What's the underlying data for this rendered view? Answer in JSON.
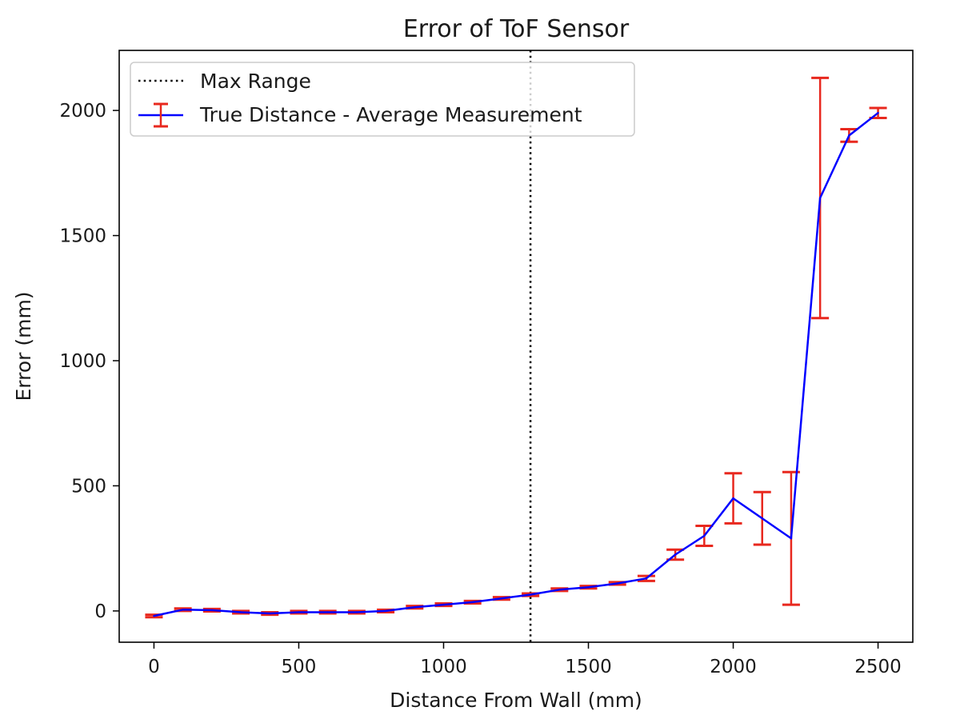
{
  "chart_data": {
    "type": "line",
    "title": "Error of ToF Sensor",
    "xlabel": "Distance From Wall (mm)",
    "ylabel": "Error (mm)",
    "xlim": [
      -120,
      2620
    ],
    "ylim": [
      -125,
      2240
    ],
    "xticks": [
      0,
      500,
      1000,
      1500,
      2000,
      2500
    ],
    "yticks": [
      0,
      500,
      1000,
      1500,
      2000
    ],
    "xtick_labels": [
      "0",
      "500",
      "1000",
      "1500",
      "2000",
      "2500"
    ],
    "ytick_labels": [
      "0",
      "500",
      "1000",
      "1500",
      "2000"
    ],
    "grid": false,
    "legend_position": "top-left",
    "reference_line": {
      "name": "Max Range",
      "x": 1300,
      "style": "dotted",
      "color": "#000000"
    },
    "series": [
      {
        "name": "True Distance - Average Measurement",
        "line_color": "#0000ff",
        "errorbar_color": "#e8281e",
        "x": [
          0,
          100,
          200,
          300,
          400,
          500,
          600,
          700,
          800,
          900,
          1000,
          1100,
          1200,
          1300,
          1400,
          1500,
          1600,
          1700,
          1800,
          1900,
          2000,
          2100,
          2200,
          2300,
          2400,
          2500
        ],
        "y": [
          -20,
          5,
          3,
          -5,
          -10,
          -5,
          -5,
          -5,
          0,
          15,
          25,
          35,
          50,
          65,
          85,
          95,
          110,
          130,
          225,
          300,
          450,
          370,
          290,
          1650,
          1900,
          1990
        ],
        "yerr": [
          5,
          5,
          5,
          5,
          5,
          5,
          5,
          5,
          5,
          5,
          5,
          5,
          5,
          5,
          5,
          5,
          5,
          10,
          20,
          40,
          100,
          105,
          265,
          480,
          25,
          20
        ]
      }
    ]
  }
}
